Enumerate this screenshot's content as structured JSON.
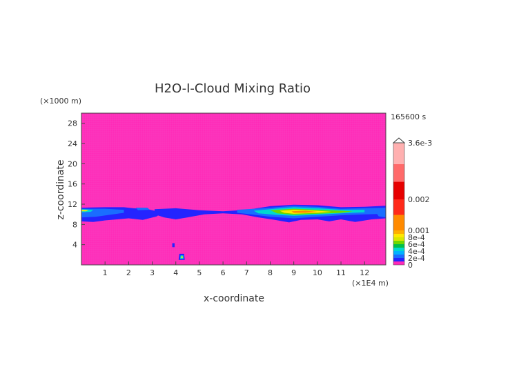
{
  "chart_data": {
    "type": "heatmap",
    "title": "H2O-I-Cloud Mixing Ratio",
    "xlabel": "x-coordinate",
    "ylabel": "z-coordinate",
    "x_unit": "(×1E4 m)",
    "y_unit": "(×1000 m)",
    "time_label": "165600 s",
    "xlim": [
      0,
      12.9
    ],
    "ylim": [
      0,
      30
    ],
    "x_ticks": [
      1,
      2,
      3,
      4,
      5,
      6,
      7,
      8,
      9,
      10,
      11,
      12
    ],
    "y_ticks": [
      4,
      8,
      12,
      16,
      20,
      24,
      28
    ],
    "background_color": "#ff29b8",
    "colorbar": {
      "range": [
        0,
        0.0036
      ],
      "levels": [
        {
          "lo": 0,
          "hi": 0.0001,
          "color": "#ff2ab9"
        },
        {
          "lo": 0.0001,
          "hi": 0.0002,
          "color": "#2424ff"
        },
        {
          "lo": 0.0002,
          "hi": 0.0003,
          "color": "#1a6dff"
        },
        {
          "lo": 0.0003,
          "hi": 0.0004,
          "color": "#00b2ff"
        },
        {
          "lo": 0.0004,
          "hi": 0.0005,
          "color": "#00d8d0"
        },
        {
          "lo": 0.0005,
          "hi": 0.0006,
          "color": "#00c04a"
        },
        {
          "lo": 0.0006,
          "hi": 0.0007,
          "color": "#6fd800"
        },
        {
          "lo": 0.0007,
          "hi": 0.0008,
          "color": "#d8e800"
        },
        {
          "lo": 0.0008,
          "hi": 0.0009,
          "color": "#ffe800"
        },
        {
          "lo": 0.0009,
          "hi": 0.001,
          "color": "#ffb000"
        },
        {
          "lo": 0.001,
          "hi": 0.0015,
          "color": "#ff8a00"
        },
        {
          "lo": 0.0015,
          "hi": 0.002,
          "color": "#ff2a1a"
        },
        {
          "lo": 0.002,
          "hi": 0.0025,
          "color": "#e60000"
        },
        {
          "lo": 0.0025,
          "hi": 0.003,
          "color": "#ff6a6a"
        },
        {
          "lo": 0.003,
          "hi": 0.0036,
          "color": "#ffb0b0"
        }
      ],
      "tick_labels": [
        {
          "value": 0,
          "label": "0"
        },
        {
          "value": 0.0002,
          "label": "2e-4"
        },
        {
          "value": 0.0004,
          "label": "4e-4"
        },
        {
          "value": 0.0006,
          "label": "6e-4"
        },
        {
          "value": 0.0008,
          "label": "8e-4"
        },
        {
          "value": 0.001,
          "label": "0.001"
        },
        {
          "value": 0.002,
          "label": "0.002"
        },
        {
          "value": 0.0036,
          "label": "3.6e-3"
        }
      ]
    },
    "cloud_features": [
      {
        "name": "left band outer",
        "level": 0.0001,
        "points": [
          [
            0.0,
            11.3
          ],
          [
            1.0,
            11.4
          ],
          [
            1.8,
            11.4
          ],
          [
            2.2,
            11.2
          ],
          [
            2.8,
            11.0
          ],
          [
            3.4,
            10.4
          ],
          [
            3.2,
            9.6
          ],
          [
            2.6,
            8.9
          ],
          [
            2.0,
            9.2
          ],
          [
            1.5,
            9.0
          ],
          [
            1.0,
            8.8
          ],
          [
            0.5,
            8.5
          ],
          [
            0.0,
            8.6
          ]
        ]
      },
      {
        "name": "mid band outer",
        "level": 0.0001,
        "points": [
          [
            3.1,
            11.0
          ],
          [
            4.0,
            11.2
          ],
          [
            5.0,
            10.8
          ],
          [
            6.0,
            10.6
          ],
          [
            7.0,
            10.9
          ],
          [
            8.0,
            11.6
          ],
          [
            9.0,
            11.9
          ],
          [
            10.0,
            11.8
          ],
          [
            11.0,
            11.4
          ],
          [
            12.0,
            11.5
          ],
          [
            12.9,
            11.7
          ],
          [
            12.9,
            9.2
          ],
          [
            12.3,
            9.0
          ],
          [
            11.6,
            8.5
          ],
          [
            11.0,
            9.0
          ],
          [
            10.5,
            8.6
          ],
          [
            10.0,
            9.0
          ],
          [
            9.3,
            8.9
          ],
          [
            8.8,
            8.4
          ],
          [
            8.2,
            8.9
          ],
          [
            7.5,
            9.4
          ],
          [
            6.8,
            10.0
          ],
          [
            6.0,
            10.2
          ],
          [
            5.2,
            10.0
          ],
          [
            4.5,
            9.4
          ],
          [
            4.0,
            9.0
          ],
          [
            3.5,
            9.4
          ],
          [
            3.1,
            10.0
          ]
        ]
      },
      {
        "name": "left band blue",
        "level": 0.0002,
        "points": [
          [
            0.0,
            11.1
          ],
          [
            1.0,
            11.1
          ],
          [
            1.8,
            10.9
          ],
          [
            1.8,
            10.3
          ],
          [
            1.2,
            9.9
          ],
          [
            0.6,
            9.5
          ],
          [
            0.0,
            9.4
          ]
        ]
      },
      {
        "name": "left band cyan",
        "level": 0.0004,
        "points": [
          [
            0.0,
            11.0
          ],
          [
            0.5,
            10.9
          ],
          [
            0.4,
            10.5
          ],
          [
            0.0,
            10.4
          ]
        ]
      },
      {
        "name": "left band yellow",
        "level": 0.0008,
        "points": [
          [
            0.0,
            10.9
          ],
          [
            0.3,
            10.8
          ],
          [
            0.2,
            10.6
          ],
          [
            0.0,
            10.6
          ]
        ]
      },
      {
        "name": "left tip blue",
        "level": 0.0002,
        "points": [
          [
            2.3,
            11.3
          ],
          [
            2.8,
            11.3
          ],
          [
            2.9,
            10.9
          ],
          [
            2.4,
            10.8
          ]
        ]
      },
      {
        "name": "right band blue",
        "level": 0.0002,
        "points": [
          [
            6.6,
            10.9
          ],
          [
            8.0,
            11.3
          ],
          [
            9.0,
            11.7
          ],
          [
            10.0,
            11.5
          ],
          [
            11.0,
            11.1
          ],
          [
            12.9,
            11.3
          ],
          [
            12.9,
            10.1
          ],
          [
            12.0,
            10.0
          ],
          [
            11.0,
            9.8
          ],
          [
            10.0,
            9.5
          ],
          [
            9.0,
            9.2
          ],
          [
            8.0,
            9.5
          ],
          [
            7.2,
            10.0
          ],
          [
            6.6,
            10.3
          ]
        ]
      },
      {
        "name": "right band cyan",
        "level": 0.0004,
        "points": [
          [
            7.3,
            10.7
          ],
          [
            8.2,
            11.1
          ],
          [
            9.0,
            11.4
          ],
          [
            10.0,
            11.2
          ],
          [
            11.0,
            10.9
          ],
          [
            12.0,
            10.9
          ],
          [
            12.0,
            10.4
          ],
          [
            11.0,
            10.2
          ],
          [
            10.0,
            9.9
          ],
          [
            9.0,
            9.7
          ],
          [
            8.2,
            9.9
          ],
          [
            7.5,
            10.2
          ]
        ]
      },
      {
        "name": "right band green",
        "level": 0.0006,
        "points": [
          [
            8.0,
            10.8
          ],
          [
            9.0,
            11.1
          ],
          [
            10.0,
            10.9
          ],
          [
            11.0,
            10.7
          ],
          [
            11.5,
            10.6
          ],
          [
            11.0,
            10.3
          ],
          [
            10.0,
            10.1
          ],
          [
            9.0,
            9.9
          ],
          [
            8.3,
            10.2
          ]
        ]
      },
      {
        "name": "right band yellow",
        "level": 0.0008,
        "points": [
          [
            8.4,
            10.7
          ],
          [
            9.0,
            10.9
          ],
          [
            10.0,
            10.7
          ],
          [
            10.6,
            10.5
          ],
          [
            10.0,
            10.3
          ],
          [
            9.0,
            10.1
          ],
          [
            8.6,
            10.3
          ]
        ]
      },
      {
        "name": "right band orange",
        "level": 0.001,
        "points": [
          [
            8.9,
            10.6
          ],
          [
            9.5,
            10.7
          ],
          [
            10.0,
            10.5
          ],
          [
            9.5,
            10.3
          ],
          [
            9.0,
            10.3
          ]
        ]
      },
      {
        "name": "right edge blue",
        "level": 0.0002,
        "points": [
          [
            12.5,
            10.3
          ],
          [
            12.9,
            10.5
          ],
          [
            12.9,
            9.4
          ],
          [
            12.6,
            9.6
          ]
        ]
      },
      {
        "name": "low blob outer",
        "level": 0.0001,
        "points": [
          [
            4.15,
            2.2
          ],
          [
            4.35,
            2.2
          ],
          [
            4.38,
            1.0
          ],
          [
            4.12,
            1.0
          ]
        ]
      },
      {
        "name": "low blob cyan",
        "level": 0.0004,
        "points": [
          [
            4.2,
            1.9
          ],
          [
            4.32,
            1.9
          ],
          [
            4.33,
            1.2
          ],
          [
            4.18,
            1.2
          ]
        ]
      },
      {
        "name": "low blob yellow",
        "level": 0.0008,
        "points": [
          [
            4.23,
            1.7
          ],
          [
            4.29,
            1.7
          ],
          [
            4.29,
            1.35
          ],
          [
            4.23,
            1.35
          ]
        ]
      },
      {
        "name": "small speck",
        "level": 0.0001,
        "points": [
          [
            3.85,
            4.3
          ],
          [
            3.95,
            4.3
          ],
          [
            3.95,
            3.5
          ],
          [
            3.85,
            3.5
          ]
        ]
      }
    ]
  }
}
